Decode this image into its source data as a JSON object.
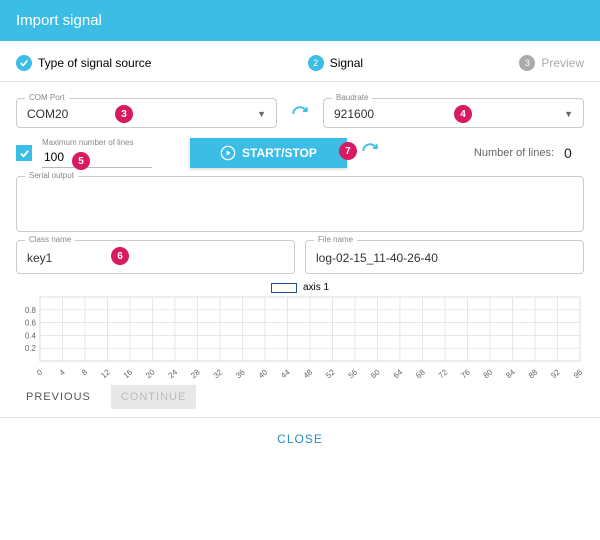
{
  "header": {
    "title": "Import signal"
  },
  "stepper": {
    "step1_label": "Type of signal source",
    "step2_num": "2",
    "step2_label": "Signal",
    "step3_num": "3",
    "step3_label": "Preview"
  },
  "comport": {
    "label": "COM Port",
    "value": "COM20"
  },
  "baudrate": {
    "label": "Baudrate",
    "value": "921600"
  },
  "maxlines": {
    "label": "Maximum number of lines",
    "value": "100"
  },
  "startstop": {
    "label": "START/STOP"
  },
  "numlines": {
    "label": "Number of lines:",
    "value": "0"
  },
  "serial": {
    "label": "Serial output"
  },
  "classname": {
    "label": "Class name",
    "value": "key1"
  },
  "filename": {
    "label": "File name",
    "value": "log-02-15_11-40-26-40"
  },
  "hotspots": {
    "h3": "3",
    "h4": "4",
    "h5": "5",
    "h6": "6",
    "h7": "7"
  },
  "chart": {
    "legend_label": "axis 1",
    "yticks": [
      "0.8",
      "0.6",
      "0.4",
      "0.2"
    ],
    "xticks": [
      "0",
      "4",
      "8",
      "12",
      "16",
      "20",
      "24",
      "28",
      "32",
      "36",
      "40",
      "44",
      "48",
      "52",
      "56",
      "60",
      "64",
      "68",
      "72",
      "76",
      "80",
      "84",
      "88",
      "92",
      "96"
    ],
    "grid_color": "#dddddd",
    "text_color": "#666666",
    "legend_border": "#1f4e9c"
  },
  "nav": {
    "previous": "PREVIOUS",
    "continue": "CONTINUE"
  },
  "footer": {
    "close": "CLOSE"
  }
}
